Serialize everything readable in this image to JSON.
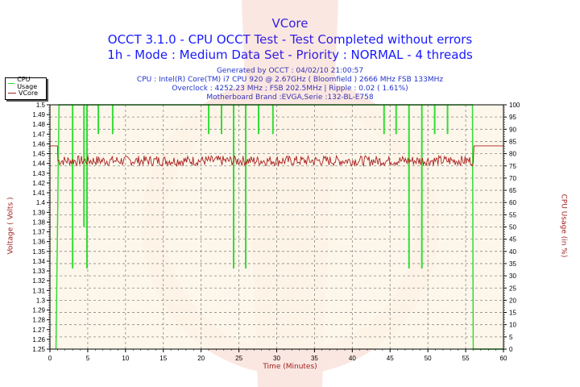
{
  "titles": {
    "line1": "VCore",
    "line2": "OCCT 3.1.0 - CPU OCCT Test - Test Completed without errors",
    "line3": "1h - Mode : Medium Data Set - Priority : NORMAL - 4 threads"
  },
  "info": {
    "generated": "Generated by OCCT : 04/02/10 21:00:57",
    "cpu": "CPU : Intel(R) Core(TM) i7 CPU 920 @ 2.67GHz ( Bloomfield ) 2666 MHz FSB 133MHz",
    "overclock": "Overclock : 4252.23 MHz ; FSB 202.5MHz | Ripple : 0.02 ( 1.61%)",
    "motherboard": "Motherboard Brand :EVGA,Serie :132-BL-E758"
  },
  "legend": {
    "items": [
      {
        "label": "CPU Usage",
        "color": "#33dd33"
      },
      {
        "label": "VCore",
        "color": "#aa2222"
      }
    ]
  },
  "axes": {
    "xlabel": "Time (Minutes)",
    "ylabel_left": "Voltage ( Volts )",
    "ylabel_right": "CPU Usage (in %)"
  },
  "chart_data": {
    "type": "line",
    "title": "VCore",
    "subtitle": "OCCT 3.1.0 - CPU OCCT Test - Test Completed without errors / 1h - Mode : Medium Data Set - Priority : NORMAL - 4 threads",
    "xlabel": "Time (Minutes)",
    "ylabel": "Voltage ( Volts )",
    "y2label": "CPU Usage (in %)",
    "xlim": [
      0,
      60
    ],
    "ylim": [
      1.25,
      1.5
    ],
    "y2lim": [
      0,
      100
    ],
    "x_ticks": [
      0,
      5,
      10,
      15,
      20,
      25,
      30,
      35,
      40,
      45,
      50,
      55,
      60
    ],
    "y_ticks": [
      1.25,
      1.26,
      1.27,
      1.28,
      1.29,
      1.3,
      1.31,
      1.32,
      1.33,
      1.34,
      1.35,
      1.36,
      1.37,
      1.38,
      1.39,
      1.4,
      1.41,
      1.42,
      1.43,
      1.44,
      1.45,
      1.46,
      1.47,
      1.48,
      1.49,
      1.5
    ],
    "y2_ticks": [
      0,
      5,
      10,
      15,
      20,
      25,
      30,
      35,
      40,
      45,
      50,
      55,
      60,
      65,
      70,
      75,
      80,
      85,
      90,
      95,
      100
    ],
    "grid": true,
    "legend_position": "top-left",
    "series": [
      {
        "name": "VCore",
        "axis": "left",
        "color": "#aa2222",
        "description": "Idle at ~1.458 V before test (0-1 min), drops to oscillate ~1.437-1.448 V during load (1-56 min), returns to ~1.458 V after 56 min",
        "x": [
          0,
          1,
          1.1,
          5,
          10,
          15,
          20,
          25,
          30,
          35,
          40,
          45,
          50,
          55,
          56,
          56.2,
          60
        ],
        "values": [
          1.458,
          1.458,
          1.44,
          1.443,
          1.442,
          1.443,
          1.442,
          1.443,
          1.443,
          1.442,
          1.443,
          1.442,
          1.442,
          1.443,
          1.441,
          1.458,
          1.458
        ]
      },
      {
        "name": "CPU Usage",
        "axis": "right",
        "color": "#33dd33",
        "description": "Ramps from 0% at ~0.8 min to 100%, stays at 100% with brief dips, drops to 0% at ~56 min",
        "dips": [
          {
            "x": 1.2,
            "min": 0
          },
          {
            "x": 3.0,
            "min": 33
          },
          {
            "x": 4.5,
            "min": 50
          },
          {
            "x": 4.9,
            "min": 33
          },
          {
            "x": 6.4,
            "min": 88
          },
          {
            "x": 8.3,
            "min": 88
          },
          {
            "x": 21.0,
            "min": 88
          },
          {
            "x": 22.7,
            "min": 88
          },
          {
            "x": 24.3,
            "min": 33
          },
          {
            "x": 25.9,
            "min": 33
          },
          {
            "x": 27.6,
            "min": 88
          },
          {
            "x": 29.5,
            "min": 88
          },
          {
            "x": 44.2,
            "min": 88
          },
          {
            "x": 45.8,
            "min": 88
          },
          {
            "x": 47.5,
            "min": 33
          },
          {
            "x": 49.2,
            "min": 33
          },
          {
            "x": 50.9,
            "min": 88
          },
          {
            "x": 52.6,
            "min": 88
          },
          {
            "x": 56.0,
            "min": 0
          }
        ],
        "x": [
          0.8,
          1.2,
          55.9,
          56.0,
          60
        ],
        "values": [
          0,
          100,
          100,
          0,
          0
        ]
      }
    ]
  }
}
